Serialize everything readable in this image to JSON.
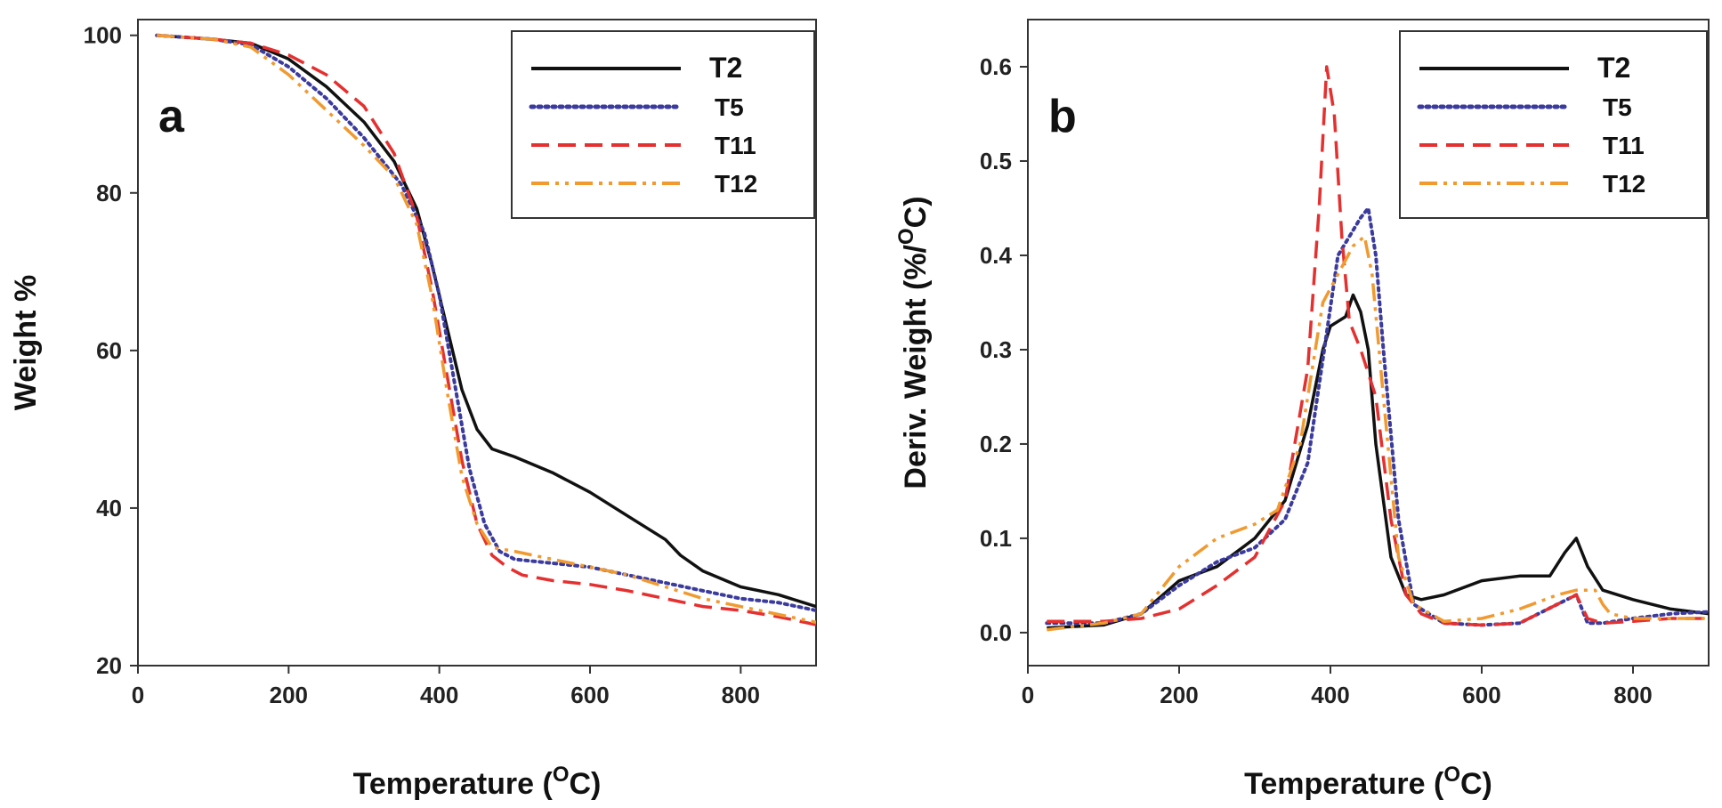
{
  "chart_data": [
    {
      "type": "line",
      "panel_label": "a",
      "xlabel_main": "Temperature (",
      "xlabel_sup": "O",
      "xlabel_end": "C)",
      "ylabel": "Weight %",
      "xlim": [
        0,
        900
      ],
      "ylim": [
        20,
        102
      ],
      "xticks": [
        0,
        200,
        400,
        600,
        800
      ],
      "yticks": [
        20,
        40,
        60,
        80,
        100
      ],
      "series": [
        {
          "name": "T2",
          "color": "#111111",
          "dash": "solid",
          "x": [
            25,
            100,
            150,
            200,
            250,
            300,
            340,
            370,
            390,
            410,
            430,
            450,
            470,
            500,
            550,
            600,
            650,
            700,
            720,
            750,
            800,
            850,
            900
          ],
          "y": [
            100,
            99.5,
            99,
            97,
            93.5,
            89,
            84,
            78,
            71,
            63,
            55,
            50,
            47.5,
            46.5,
            44.5,
            42,
            39,
            36,
            34,
            32,
            30,
            29,
            27.5
          ]
        },
        {
          "name": "T5",
          "color": "#3b3b9e",
          "dash": "dotted",
          "x": [
            25,
            100,
            150,
            200,
            250,
            300,
            350,
            380,
            400,
            420,
            440,
            460,
            480,
            500,
            550,
            600,
            650,
            700,
            750,
            800,
            850,
            900
          ],
          "y": [
            100,
            99.5,
            98.8,
            96,
            92,
            87,
            81,
            75,
            67,
            56,
            45,
            38,
            34.5,
            33.5,
            33,
            32.5,
            31.5,
            30.5,
            29.5,
            28.5,
            28,
            27
          ]
        },
        {
          "name": "T11",
          "color": "#e53030",
          "dash": "dashed",
          "x": [
            25,
            100,
            150,
            200,
            250,
            300,
            340,
            370,
            390,
            410,
            430,
            450,
            470,
            490,
            510,
            550,
            600,
            650,
            700,
            750,
            800,
            850,
            900
          ],
          "y": [
            100,
            99.5,
            99,
            97.5,
            95,
            91,
            85,
            77,
            68,
            57,
            46,
            38,
            34,
            32.5,
            31.5,
            30.8,
            30.3,
            29.5,
            28.5,
            27.5,
            27,
            26.2,
            25.2
          ]
        },
        {
          "name": "T12",
          "color": "#f09a30",
          "dash": "dashdot",
          "x": [
            25,
            100,
            150,
            200,
            250,
            300,
            340,
            370,
            390,
            410,
            430,
            450,
            470,
            500,
            550,
            600,
            650,
            700,
            750,
            800,
            850,
            900
          ],
          "y": [
            100,
            99.5,
            98.5,
            95,
            90.5,
            86,
            82,
            76,
            67,
            55,
            44,
            38,
            35,
            34.5,
            33.5,
            32.5,
            31.5,
            30,
            28.5,
            27.5,
            26.5,
            25.5
          ]
        }
      ]
    },
    {
      "type": "line",
      "panel_label": "b",
      "xlabel_main": "Temperature (",
      "xlabel_sup": "O",
      "xlabel_end": "C)",
      "ylabel_main": "Deriv. Weight (%/",
      "ylabel_sup": "O",
      "ylabel_end": "C)",
      "xlim": [
        0,
        900
      ],
      "ylim": [
        -0.035,
        0.65
      ],
      "xticks": [
        0,
        200,
        400,
        600,
        800
      ],
      "yticks": [
        "0.0",
        "0.1",
        "0.2",
        "0.3",
        "0.4",
        "0.5",
        "0.6"
      ],
      "series": [
        {
          "name": "T2",
          "color": "#111111",
          "dash": "solid",
          "x": [
            25,
            100,
            150,
            200,
            250,
            300,
            340,
            370,
            390,
            400,
            410,
            420,
            430,
            440,
            450,
            460,
            480,
            500,
            520,
            550,
            600,
            650,
            690,
            710,
            725,
            740,
            760,
            800,
            850,
            900
          ],
          "y": [
            0.005,
            0.008,
            0.02,
            0.055,
            0.07,
            0.1,
            0.14,
            0.22,
            0.3,
            0.325,
            0.33,
            0.335,
            0.358,
            0.34,
            0.3,
            0.2,
            0.08,
            0.04,
            0.035,
            0.04,
            0.055,
            0.06,
            0.06,
            0.085,
            0.1,
            0.07,
            0.045,
            0.035,
            0.025,
            0.02
          ]
        },
        {
          "name": "T5",
          "color": "#3b3b9e",
          "dash": "dotted",
          "x": [
            25,
            100,
            150,
            200,
            250,
            300,
            340,
            370,
            390,
            410,
            425,
            440,
            450,
            460,
            470,
            490,
            510,
            550,
            600,
            650,
            700,
            725,
            740,
            760,
            800,
            850,
            900
          ],
          "y": [
            0.01,
            0.01,
            0.02,
            0.05,
            0.075,
            0.09,
            0.12,
            0.18,
            0.29,
            0.4,
            0.42,
            0.44,
            0.45,
            0.4,
            0.3,
            0.12,
            0.03,
            0.01,
            0.008,
            0.01,
            0.03,
            0.04,
            0.01,
            0.01,
            0.015,
            0.02,
            0.022
          ]
        },
        {
          "name": "T11",
          "color": "#e53030",
          "dash": "dashed",
          "x": [
            25,
            100,
            150,
            200,
            250,
            300,
            340,
            370,
            385,
            395,
            405,
            415,
            425,
            440,
            460,
            480,
            500,
            520,
            550,
            600,
            650,
            700,
            725,
            740,
            760,
            800,
            850,
            900
          ],
          "y": [
            0.012,
            0.012,
            0.015,
            0.025,
            0.05,
            0.08,
            0.14,
            0.28,
            0.45,
            0.6,
            0.55,
            0.42,
            0.33,
            0.3,
            0.25,
            0.12,
            0.04,
            0.02,
            0.01,
            0.008,
            0.01,
            0.03,
            0.04,
            0.015,
            0.01,
            0.012,
            0.015,
            0.015
          ]
        },
        {
          "name": "T12",
          "color": "#f09a30",
          "dash": "dashdot",
          "x": [
            25,
            100,
            150,
            200,
            250,
            300,
            330,
            360,
            390,
            410,
            430,
            445,
            455,
            470,
            490,
            510,
            550,
            600,
            650,
            700,
            725,
            750,
            760,
            770,
            800,
            850,
            900
          ],
          "y": [
            0.003,
            0.01,
            0.02,
            0.07,
            0.1,
            0.115,
            0.13,
            0.2,
            0.35,
            0.38,
            0.41,
            0.42,
            0.38,
            0.25,
            0.08,
            0.03,
            0.012,
            0.015,
            0.025,
            0.04,
            0.045,
            0.045,
            0.03,
            0.02,
            0.015,
            0.015,
            0.015
          ]
        }
      ]
    }
  ]
}
